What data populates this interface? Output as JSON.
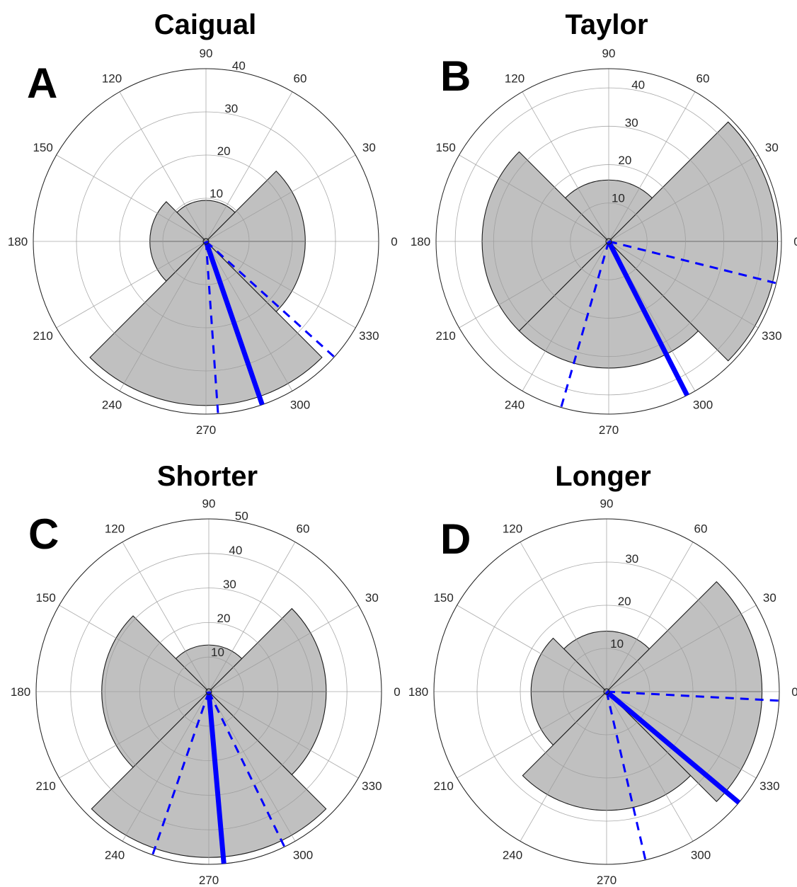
{
  "chart_data": [
    {
      "type": "polar-histogram",
      "panel": "A",
      "title": "Caigual",
      "theta_ticks": [
        "0",
        "30",
        "60",
        "90",
        "120",
        "150",
        "180",
        "210",
        "240",
        "270",
        "300",
        "330"
      ],
      "r_ticks": [
        "10",
        "20",
        "30",
        "40"
      ],
      "rlim": [
        0,
        40
      ],
      "rings": [
        10,
        20,
        30,
        40
      ],
      "colors": {
        "bars": "#c0c0c0",
        "mean": "#0000ff"
      },
      "bins": [
        {
          "start_deg": 0,
          "end_deg": 45,
          "value": 23
        },
        {
          "start_deg": 45,
          "end_deg": 135,
          "value": 9.5
        },
        {
          "start_deg": 135,
          "end_deg": 180,
          "value": 13
        },
        {
          "start_deg": 180,
          "end_deg": 225,
          "value": 13
        },
        {
          "start_deg": 225,
          "end_deg": 315,
          "value": 38
        },
        {
          "start_deg": 315,
          "end_deg": 360,
          "value": 23
        }
      ],
      "mean_direction_deg": 289,
      "ci_deg": [
        274,
        318
      ]
    },
    {
      "type": "polar-histogram",
      "panel": "B",
      "title": "Taylor",
      "theta_ticks": [
        "0",
        "30",
        "60",
        "90",
        "120",
        "150",
        "180",
        "210",
        "240",
        "270",
        "300",
        "330"
      ],
      "r_ticks": [
        "10",
        "20",
        "30",
        "40"
      ],
      "rlim": [
        0,
        45
      ],
      "rings": [
        10,
        20,
        30,
        40
      ],
      "colors": {
        "bars": "#c0c0c0",
        "mean": "#0000ff"
      },
      "bins": [
        {
          "start_deg": 0,
          "end_deg": 45,
          "value": 44
        },
        {
          "start_deg": 45,
          "end_deg": 135,
          "value": 16
        },
        {
          "start_deg": 135,
          "end_deg": 225,
          "value": 33
        },
        {
          "start_deg": 225,
          "end_deg": 315,
          "value": 33
        },
        {
          "start_deg": 315,
          "end_deg": 360,
          "value": 44
        }
      ],
      "mean_direction_deg": 297,
      "ci_deg": [
        254,
        346
      ]
    },
    {
      "type": "polar-histogram",
      "panel": "C",
      "title": "Shorter",
      "theta_ticks": [
        "0",
        "30",
        "60",
        "90",
        "120",
        "150",
        "180",
        "210",
        "240",
        "270",
        "300",
        "330"
      ],
      "r_ticks": [
        "10",
        "20",
        "30",
        "40",
        "50"
      ],
      "rlim": [
        0,
        50
      ],
      "rings": [
        10,
        20,
        30,
        40,
        50
      ],
      "colors": {
        "bars": "#c0c0c0",
        "mean": "#0000ff"
      },
      "bins": [
        {
          "start_deg": 0,
          "end_deg": 45,
          "value": 34
        },
        {
          "start_deg": 45,
          "end_deg": 135,
          "value": 13.5
        },
        {
          "start_deg": 135,
          "end_deg": 225,
          "value": 31
        },
        {
          "start_deg": 225,
          "end_deg": 315,
          "value": 48
        },
        {
          "start_deg": 315,
          "end_deg": 360,
          "value": 34
        }
      ],
      "mean_direction_deg": 275,
      "ci_deg": [
        251,
        296
      ]
    },
    {
      "type": "polar-histogram",
      "panel": "D",
      "title": "Longer",
      "theta_ticks": [
        "0",
        "30",
        "60",
        "90",
        "120",
        "150",
        "180",
        "210",
        "240",
        "270",
        "300",
        "330"
      ],
      "r_ticks": [
        "10",
        "20",
        "30"
      ],
      "rlim": [
        0,
        40
      ],
      "rings": [
        10,
        20,
        30,
        40
      ],
      "colors": {
        "bars": "#c0c0c0",
        "mean": "#0000ff"
      },
      "bins": [
        {
          "start_deg": 0,
          "end_deg": 45,
          "value": 36
        },
        {
          "start_deg": 45,
          "end_deg": 135,
          "value": 14
        },
        {
          "start_deg": 135,
          "end_deg": 180,
          "value": 17.5
        },
        {
          "start_deg": 180,
          "end_deg": 225,
          "value": 17.5
        },
        {
          "start_deg": 225,
          "end_deg": 315,
          "value": 27.5
        },
        {
          "start_deg": 315,
          "end_deg": 360,
          "value": 36
        }
      ],
      "mean_direction_deg": 320,
      "ci_deg": [
        283,
        357
      ]
    }
  ]
}
